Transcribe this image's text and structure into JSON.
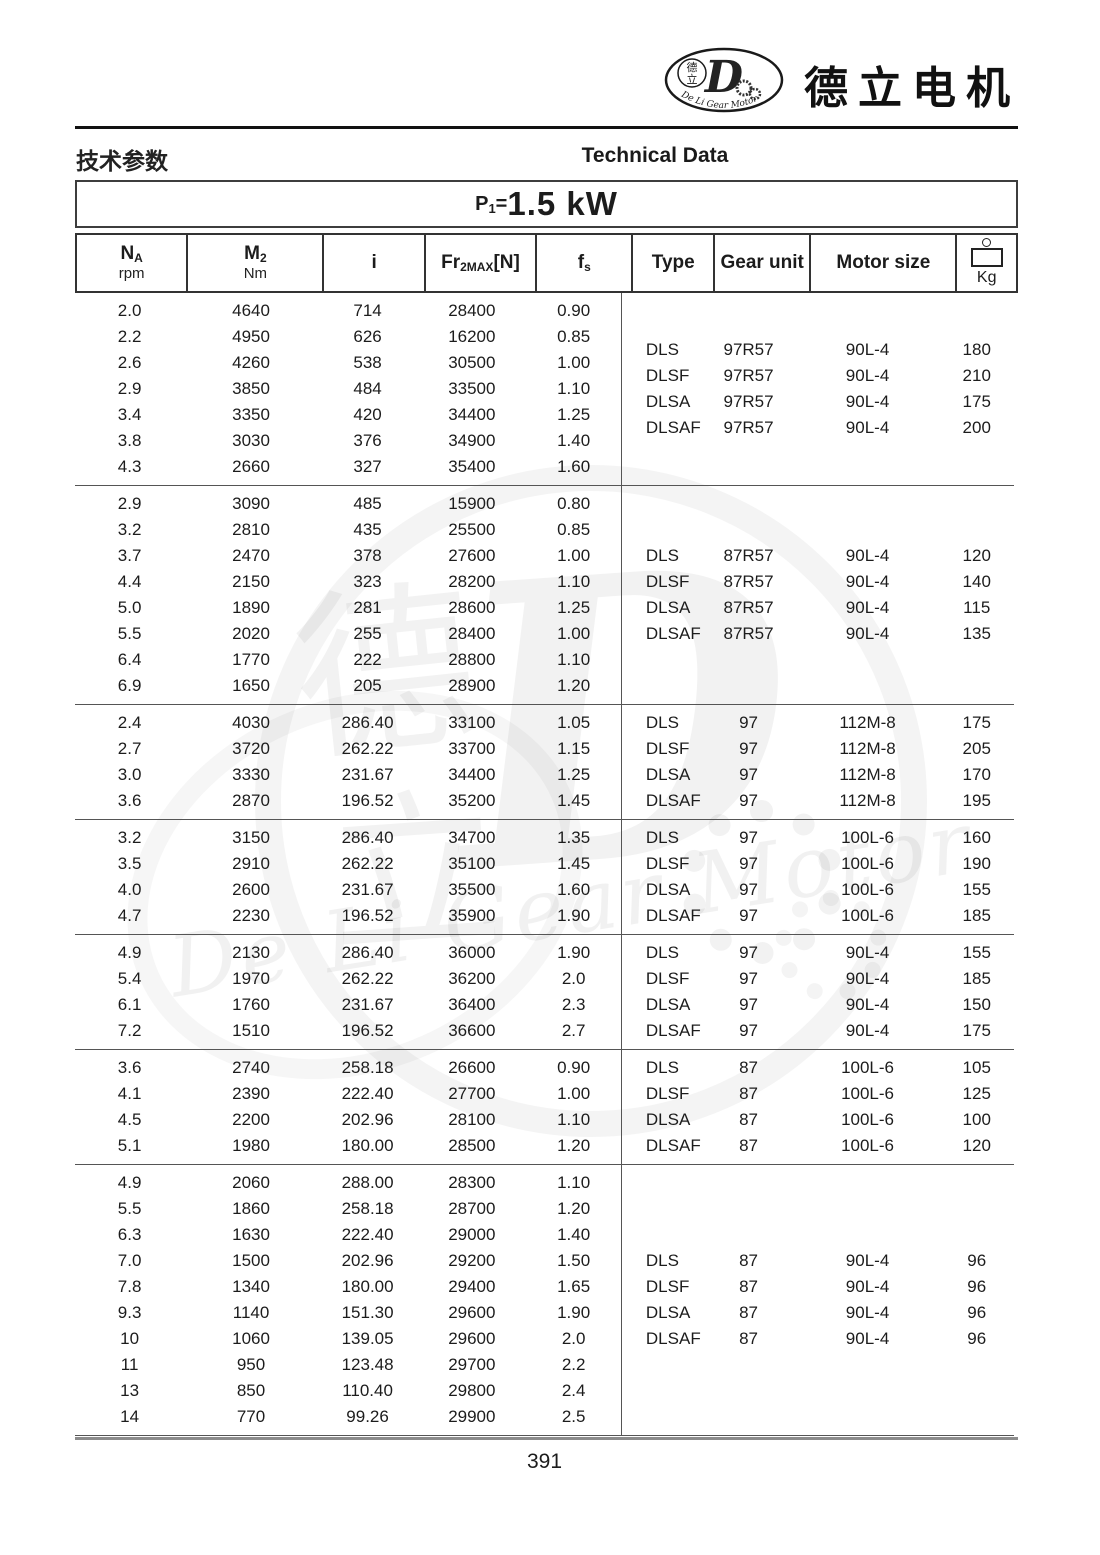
{
  "brand": {
    "name": "德立电机",
    "logo": {
      "d_letter": "D",
      "cn_top": "德",
      "cn_bottom": "立",
      "ring_text": "De Li Gear Motor"
    }
  },
  "header": {
    "title_cn": "技术参数",
    "title_en": "Technical Data",
    "power": {
      "p": "P",
      "sub": "1",
      "eq": "=",
      "value": "1.5 kW"
    }
  },
  "table": {
    "columns": [
      {
        "id": "na",
        "main": "N",
        "sub": "A",
        "unit": "rpm"
      },
      {
        "id": "m2",
        "main": "M",
        "sub": "2",
        "unit": "Nm"
      },
      {
        "id": "i",
        "main": "i"
      },
      {
        "id": "fr",
        "main": "Fr",
        "sub": "2MAX",
        "tail": "[N]"
      },
      {
        "id": "fs",
        "main": "f",
        "sub": "s"
      },
      {
        "id": "type",
        "main": "Type"
      },
      {
        "id": "gear",
        "main": "Gear unit"
      },
      {
        "id": "motor",
        "main": "Motor size"
      },
      {
        "id": "kg",
        "main": "Kg"
      }
    ],
    "blocks": [
      {
        "rows": [
          [
            "2.0",
            "4640",
            "714",
            "28400",
            "0.90"
          ],
          [
            "2.2",
            "4950",
            "626",
            "16200",
            "0.85"
          ],
          [
            "2.6",
            "4260",
            "538",
            "30500",
            "1.00"
          ],
          [
            "2.9",
            "3850",
            "484",
            "33500",
            "1.10"
          ],
          [
            "3.4",
            "3350",
            "420",
            "34400",
            "1.25"
          ],
          [
            "3.8",
            "3030",
            "376",
            "34900",
            "1.40"
          ],
          [
            "4.3",
            "2660",
            "327",
            "35400",
            "1.60"
          ]
        ],
        "right": [
          [
            "DLS",
            "97R57",
            "90L-4",
            "180"
          ],
          [
            "DLSF",
            "97R57",
            "90L-4",
            "210"
          ],
          [
            "DLSA",
            "97R57",
            "90L-4",
            "175"
          ],
          [
            "DLSAF",
            "97R57",
            "90L-4",
            "200"
          ]
        ]
      },
      {
        "rows": [
          [
            "2.9",
            "3090",
            "485",
            "15900",
            "0.80"
          ],
          [
            "3.2",
            "2810",
            "435",
            "25500",
            "0.85"
          ],
          [
            "3.7",
            "2470",
            "378",
            "27600",
            "1.00"
          ],
          [
            "4.4",
            "2150",
            "323",
            "28200",
            "1.10"
          ],
          [
            "5.0",
            "1890",
            "281",
            "28600",
            "1.25"
          ],
          [
            "5.5",
            "2020",
            "255",
            "28400",
            "1.00"
          ],
          [
            "6.4",
            "1770",
            "222",
            "28800",
            "1.10"
          ],
          [
            "6.9",
            "1650",
            "205",
            "28900",
            "1.20"
          ]
        ],
        "right": [
          [
            "DLS",
            "87R57",
            "90L-4",
            "120"
          ],
          [
            "DLSF",
            "87R57",
            "90L-4",
            "140"
          ],
          [
            "DLSA",
            "87R57",
            "90L-4",
            "115"
          ],
          [
            "DLSAF",
            "87R57",
            "90L-4",
            "135"
          ]
        ]
      },
      {
        "rows": [
          [
            "2.4",
            "4030",
            "286.40",
            "33100",
            "1.05"
          ],
          [
            "2.7",
            "3720",
            "262.22",
            "33700",
            "1.15"
          ],
          [
            "3.0",
            "3330",
            "231.67",
            "34400",
            "1.25"
          ],
          [
            "3.6",
            "2870",
            "196.52",
            "35200",
            "1.45"
          ]
        ],
        "right": [
          [
            "DLS",
            "97",
            "112M-8",
            "175"
          ],
          [
            "DLSF",
            "97",
            "112M-8",
            "205"
          ],
          [
            "DLSA",
            "97",
            "112M-8",
            "170"
          ],
          [
            "DLSAF",
            "97",
            "112M-8",
            "195"
          ]
        ]
      },
      {
        "rows": [
          [
            "3.2",
            "3150",
            "286.40",
            "34700",
            "1.35"
          ],
          [
            "3.5",
            "2910",
            "262.22",
            "35100",
            "1.45"
          ],
          [
            "4.0",
            "2600",
            "231.67",
            "35500",
            "1.60"
          ],
          [
            "4.7",
            "2230",
            "196.52",
            "35900",
            "1.90"
          ]
        ],
        "right": [
          [
            "DLS",
            "97",
            "100L-6",
            "160"
          ],
          [
            "DLSF",
            "97",
            "100L-6",
            "190"
          ],
          [
            "DLSA",
            "97",
            "100L-6",
            "155"
          ],
          [
            "DLSAF",
            "97",
            "100L-6",
            "185"
          ]
        ]
      },
      {
        "rows": [
          [
            "4.9",
            "2130",
            "286.40",
            "36000",
            "1.90"
          ],
          [
            "5.4",
            "1970",
            "262.22",
            "36200",
            "2.0"
          ],
          [
            "6.1",
            "1760",
            "231.67",
            "36400",
            "2.3"
          ],
          [
            "7.2",
            "1510",
            "196.52",
            "36600",
            "2.7"
          ]
        ],
        "right": [
          [
            "DLS",
            "97",
            "90L-4",
            "155"
          ],
          [
            "DLSF",
            "97",
            "90L-4",
            "185"
          ],
          [
            "DLSA",
            "97",
            "90L-4",
            "150"
          ],
          [
            "DLSAF",
            "97",
            "90L-4",
            "175"
          ]
        ]
      },
      {
        "rows": [
          [
            "3.6",
            "2740",
            "258.18",
            "26600",
            "0.90"
          ],
          [
            "4.1",
            "2390",
            "222.40",
            "27700",
            "1.00"
          ],
          [
            "4.5",
            "2200",
            "202.96",
            "28100",
            "1.10"
          ],
          [
            "5.1",
            "1980",
            "180.00",
            "28500",
            "1.20"
          ]
        ],
        "right": [
          [
            "DLS",
            "87",
            "100L-6",
            "105"
          ],
          [
            "DLSF",
            "87",
            "100L-6",
            "125"
          ],
          [
            "DLSA",
            "87",
            "100L-6",
            "100"
          ],
          [
            "DLSAF",
            "87",
            "100L-6",
            "120"
          ]
        ]
      },
      {
        "rows": [
          [
            "4.9",
            "2060",
            "288.00",
            "28300",
            "1.10"
          ],
          [
            "5.5",
            "1860",
            "258.18",
            "28700",
            "1.20"
          ],
          [
            "6.3",
            "1630",
            "222.40",
            "29000",
            "1.40"
          ],
          [
            "7.0",
            "1500",
            "202.96",
            "29200",
            "1.50"
          ],
          [
            "7.8",
            "1340",
            "180.00",
            "29400",
            "1.65"
          ],
          [
            "9.3",
            "1140",
            "151.30",
            "29600",
            "1.90"
          ],
          [
            "10",
            "1060",
            "139.05",
            "29600",
            "2.0"
          ],
          [
            "11",
            "950",
            "123.48",
            "29700",
            "2.2"
          ],
          [
            "13",
            "850",
            "110.40",
            "29800",
            "2.4"
          ],
          [
            "14",
            "770",
            "99.26",
            "29900",
            "2.5"
          ]
        ],
        "right": [
          [
            "DLS",
            "87",
            "90L-4",
            "96"
          ],
          [
            "DLSF",
            "87",
            "90L-4",
            "96"
          ],
          [
            "DLSA",
            "87",
            "90L-4",
            "96"
          ],
          [
            "DLSAF",
            "87",
            "90L-4",
            "96"
          ]
        ]
      }
    ]
  },
  "watermark": {
    "cn_top": "德",
    "cn_bottom": "立",
    "d_letter": "D",
    "script": "De Li Gear Motor"
  },
  "footer": {
    "page": "391"
  }
}
